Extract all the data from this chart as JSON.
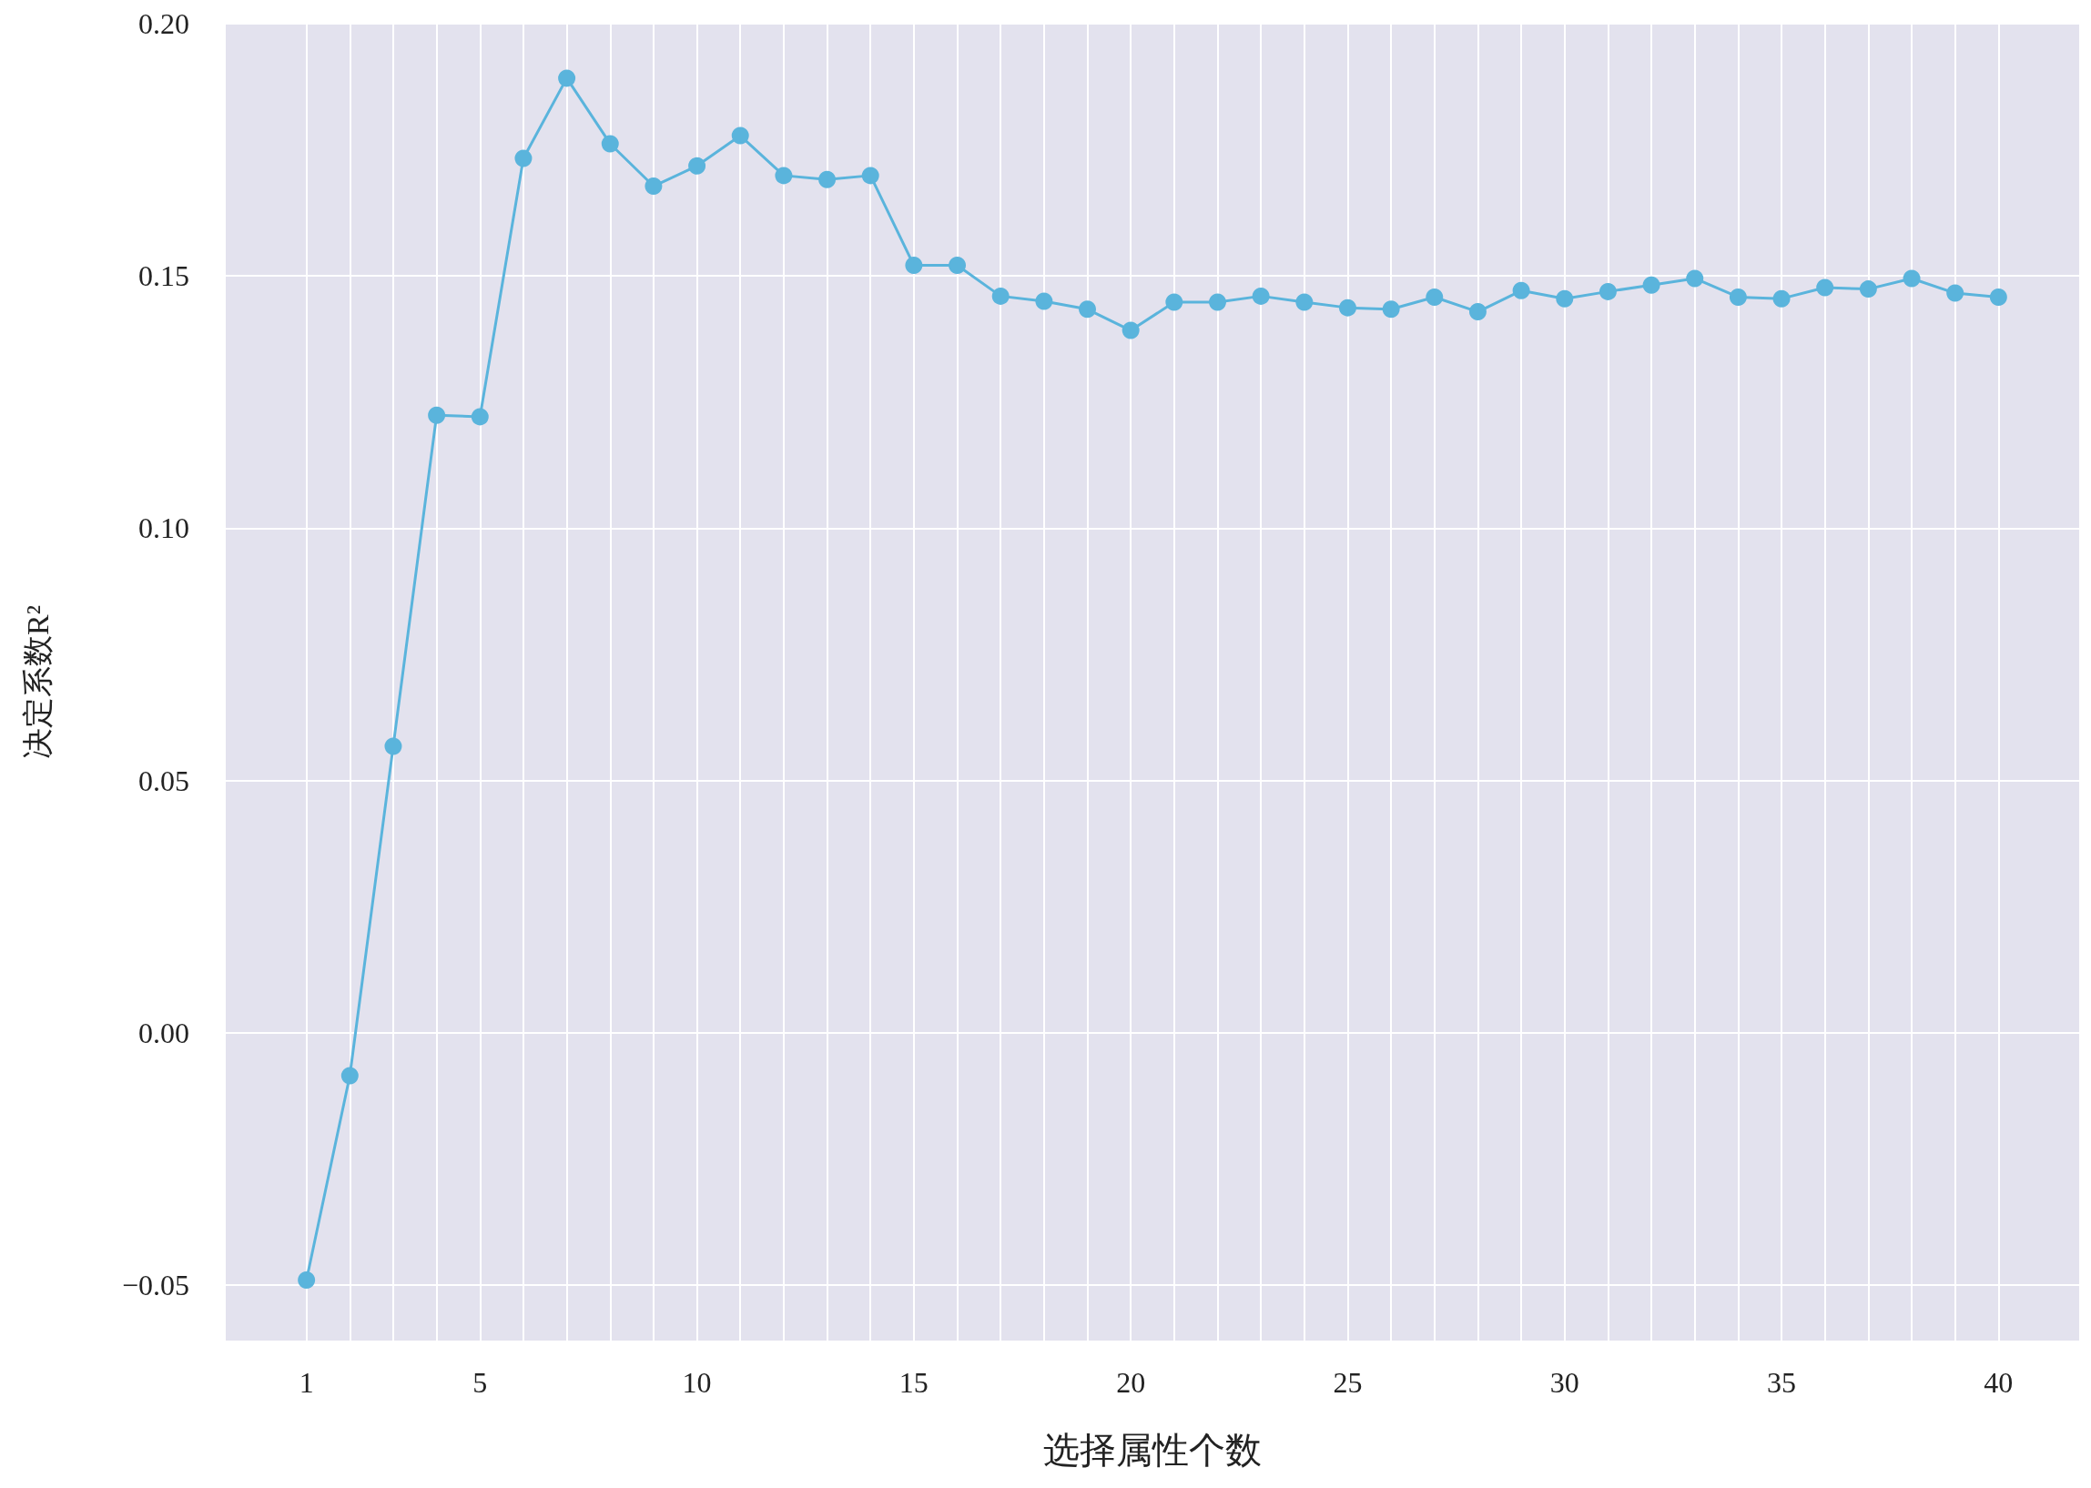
{
  "chart_data": {
    "type": "line",
    "xlabel": "选择属性个数",
    "ylabel": "决定系数R²",
    "x": [
      1,
      2,
      3,
      4,
      5,
      6,
      7,
      8,
      9,
      10,
      11,
      12,
      13,
      14,
      15,
      16,
      17,
      18,
      19,
      20,
      21,
      22,
      23,
      24,
      25,
      26,
      27,
      28,
      29,
      30,
      31,
      32,
      33,
      34,
      35,
      36,
      37,
      38,
      39,
      40
    ],
    "series": [
      {
        "color": "#5ab4dc",
        "values": [
          -0.049,
          -0.0085,
          0.0568,
          0.1224,
          0.1221,
          0.1733,
          0.1892,
          0.1762,
          0.1678,
          0.1718,
          0.1778,
          0.1699,
          0.1691,
          0.1699,
          0.1521,
          0.1521,
          0.146,
          0.145,
          0.1434,
          0.1392,
          0.1448,
          0.1448,
          0.146,
          0.1448,
          0.1437,
          0.1434,
          0.1458,
          0.1429,
          0.1471,
          0.1455,
          0.1469,
          0.1482,
          0.1495,
          0.1458,
          0.1455,
          0.1477,
          0.1474,
          0.1495,
          0.1466,
          0.1458
        ]
      }
    ],
    "xlim": [
      -0.86,
      41.86
    ],
    "xticks": [
      1,
      {
        "value": 2,
        "label": null
      },
      {
        "value": 3,
        "label": null
      },
      {
        "value": 4,
        "label": null
      },
      5,
      {
        "value": 6,
        "label": null
      },
      {
        "value": 7,
        "label": null
      },
      {
        "value": 8,
        "label": null
      },
      {
        "value": 9,
        "label": null
      },
      10,
      {
        "value": 11,
        "label": null
      },
      {
        "value": 12,
        "label": null
      },
      {
        "value": 13,
        "label": null
      },
      {
        "value": 14,
        "label": null
      },
      15,
      {
        "value": 16,
        "label": null
      },
      {
        "value": 17,
        "label": null
      },
      {
        "value": 18,
        "label": null
      },
      {
        "value": 19,
        "label": null
      },
      20,
      {
        "value": 21,
        "label": null
      },
      {
        "value": 22,
        "label": null
      },
      {
        "value": 23,
        "label": null
      },
      {
        "value": 24,
        "label": null
      },
      25,
      {
        "value": 26,
        "label": null
      },
      {
        "value": 27,
        "label": null
      },
      {
        "value": 28,
        "label": null
      },
      {
        "value": 29,
        "label": null
      },
      30,
      {
        "value": 31,
        "label": null
      },
      {
        "value": 32,
        "label": null
      },
      {
        "value": 33,
        "label": null
      },
      {
        "value": 34,
        "label": null
      },
      35,
      {
        "value": 36,
        "label": null
      },
      {
        "value": 37,
        "label": null
      },
      {
        "value": 38,
        "label": null
      },
      {
        "value": 39,
        "label": null
      },
      40
    ],
    "ylim": [
      -0.061,
      0.2
    ],
    "yticks": [
      {
        "value": -0.05,
        "label": "−0.05"
      },
      {
        "value": 0,
        "label": "0.00"
      },
      {
        "value": 0.05,
        "label": "0.05"
      },
      {
        "value": 0.1,
        "label": "0.10"
      },
      {
        "value": 0.15,
        "label": "0.15"
      },
      {
        "value": 0.2,
        "label": "0.20"
      }
    ],
    "grid": true,
    "marker": "circle",
    "line_style": "solid"
  }
}
